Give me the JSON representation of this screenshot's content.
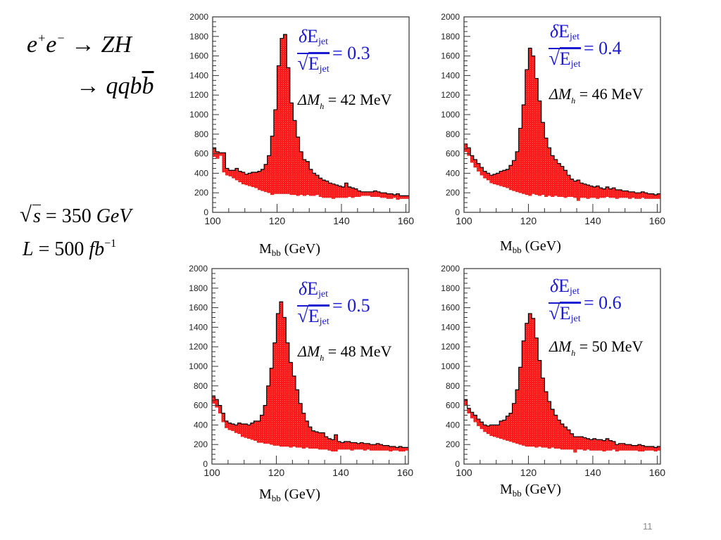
{
  "slide": {
    "page_number": "11",
    "process": {
      "line1_left": "e",
      "line1_sup1": "+",
      "line1_mid": "e",
      "line1_sup2": "−",
      "line1_arrow": "→",
      "line1_right": "ZH",
      "line2_arrow": "→",
      "line2_right": "qqb",
      "line2_bbar": "b"
    },
    "parameters": {
      "sqrt_s_symbol": "s",
      "sqrt_s_value": "= 350",
      "sqrt_s_unit": "GeV",
      "lumi_symbol": "L",
      "lumi_value": "= 500",
      "lumi_unit": "fb",
      "lumi_exp": "−1"
    },
    "colors": {
      "histogram_fill": "#ff1a1a",
      "histogram_edge": "#000000",
      "resolution_text": "#1a1ad0",
      "page_number": "#8a8a8a"
    }
  },
  "chart_data": [
    {
      "type": "bar",
      "subtype": "filled-band histogram",
      "title": "",
      "xlabel_main": "M",
      "xlabel_sub": "bb",
      "xlabel_unit": "(GeV)",
      "ylabel": "",
      "xlim": [
        100,
        161
      ],
      "ylim": [
        0,
        2000
      ],
      "xticks": [
        "100",
        "120",
        "140",
        "160"
      ],
      "yticks": [
        "0",
        "200",
        "400",
        "600",
        "800",
        "1000",
        "1200",
        "1400",
        "1600",
        "1800",
        "2000"
      ],
      "annotation_resolution": {
        "numerator": "E",
        "sub": "jet",
        "denominator": "E",
        "value": "= 0.3"
      },
      "annotation_mass": {
        "symbol": "ΔM",
        "sub": "h",
        "value": "= 42 MeV"
      },
      "bin_width": 1,
      "x_start": 100,
      "upper": [
        660,
        620,
        610,
        610,
        450,
        430,
        430,
        450,
        420,
        410,
        390,
        400,
        410,
        410,
        420,
        440,
        490,
        580,
        780,
        1050,
        1500,
        1780,
        1820,
        1480,
        1120,
        940,
        770,
        620,
        540,
        520,
        440,
        400,
        380,
        350,
        330,
        320,
        300,
        290,
        280,
        270,
        260,
        300,
        260,
        250,
        240,
        220,
        210,
        210,
        210,
        210,
        220,
        210,
        200,
        200,
        190,
        190,
        180,
        190,
        170,
        170,
        170
      ],
      "lower": [
        570,
        550,
        580,
        410,
        380,
        370,
        350,
        330,
        310,
        290,
        280,
        270,
        260,
        250,
        230,
        220,
        210,
        200,
        180,
        190,
        190,
        190,
        190,
        190,
        180,
        180,
        170,
        180,
        170,
        180,
        170,
        170,
        180,
        160,
        150,
        150,
        150,
        140,
        150,
        150,
        150,
        150,
        160,
        150,
        160,
        160,
        170,
        170,
        170,
        160,
        160,
        160,
        150,
        150,
        140,
        140,
        150,
        130,
        140,
        140,
        140
      ]
    },
    {
      "type": "bar",
      "subtype": "filled-band histogram",
      "title": "",
      "xlabel_main": "M",
      "xlabel_sub": "bb",
      "xlabel_unit": "(GeV)",
      "ylabel": "",
      "xlim": [
        100,
        161
      ],
      "ylim": [
        0,
        2000
      ],
      "xticks": [
        "100",
        "120",
        "140",
        "160"
      ],
      "yticks": [
        "0",
        "200",
        "400",
        "600",
        "800",
        "1000",
        "1200",
        "1400",
        "1600",
        "1800",
        "2000"
      ],
      "annotation_resolution": {
        "numerator": "E",
        "sub": "jet",
        "denominator": "E",
        "value": "= 0.4"
      },
      "annotation_mass": {
        "symbol": "ΔM",
        "sub": "h",
        "value": "= 46 MeV"
      },
      "bin_width": 1,
      "x_start": 100,
      "upper": [
        700,
        660,
        580,
        540,
        500,
        460,
        420,
        400,
        380,
        390,
        400,
        420,
        430,
        440,
        480,
        530,
        620,
        860,
        1100,
        1460,
        1680,
        1600,
        1370,
        1140,
        920,
        760,
        660,
        580,
        540,
        500,
        470,
        430,
        380,
        340,
        320,
        330,
        300,
        290,
        280,
        270,
        260,
        270,
        250,
        240,
        260,
        240,
        250,
        230,
        230,
        220,
        220,
        210,
        210,
        200,
        200,
        210,
        200,
        190,
        190,
        180,
        190
      ],
      "lower": [
        620,
        580,
        510,
        460,
        420,
        380,
        350,
        330,
        300,
        290,
        280,
        270,
        260,
        250,
        230,
        220,
        210,
        200,
        190,
        180,
        170,
        190,
        180,
        170,
        180,
        160,
        170,
        160,
        170,
        160,
        160,
        150,
        160,
        160,
        150,
        120,
        150,
        150,
        140,
        150,
        150,
        140,
        150,
        150,
        160,
        150,
        150,
        140,
        150,
        150,
        150,
        140,
        150,
        140,
        140,
        150,
        140,
        140,
        140,
        140,
        140
      ]
    },
    {
      "type": "bar",
      "subtype": "filled-band histogram",
      "title": "",
      "xlabel_main": "M",
      "xlabel_sub": "bb",
      "xlabel_unit": "(GeV)",
      "ylabel": "",
      "xlim": [
        100,
        161
      ],
      "ylim": [
        0,
        2000
      ],
      "xticks": [
        "100",
        "120",
        "140",
        "160"
      ],
      "yticks": [
        "0",
        "200",
        "400",
        "600",
        "800",
        "1000",
        "1200",
        "1400",
        "1600",
        "1800",
        "2000"
      ],
      "annotation_resolution": {
        "numerator": "E",
        "sub": "jet",
        "denominator": "E",
        "value": "= 0.5"
      },
      "annotation_mass": {
        "symbol": "ΔM",
        "sub": "h",
        "value": "= 48 MeV"
      },
      "bin_width": 1,
      "x_start": 100,
      "upper": [
        690,
        660,
        600,
        520,
        440,
        420,
        410,
        400,
        420,
        410,
        410,
        400,
        420,
        440,
        440,
        500,
        600,
        800,
        980,
        1240,
        1540,
        1660,
        1500,
        1240,
        1040,
        900,
        760,
        620,
        520,
        440,
        380,
        340,
        330,
        320,
        320,
        280,
        260,
        250,
        300,
        230,
        220,
        230,
        230,
        220,
        220,
        210,
        220,
        210,
        210,
        200,
        200,
        210,
        200,
        190,
        190,
        180,
        180,
        170,
        180,
        170,
        170
      ],
      "lower": [
        620,
        580,
        520,
        430,
        370,
        350,
        340,
        320,
        310,
        280,
        270,
        260,
        250,
        240,
        220,
        220,
        210,
        210,
        200,
        190,
        190,
        180,
        180,
        180,
        170,
        180,
        170,
        170,
        160,
        170,
        160,
        160,
        160,
        150,
        150,
        150,
        140,
        130,
        130,
        150,
        150,
        150,
        150,
        140,
        150,
        150,
        150,
        140,
        150,
        140,
        140,
        140,
        140,
        140,
        140,
        130,
        140,
        140,
        130,
        130,
        140
      ]
    },
    {
      "type": "bar",
      "subtype": "filled-band histogram",
      "title": "",
      "xlabel_main": "M",
      "xlabel_sub": "bb",
      "xlabel_unit": "(GeV)",
      "ylabel": "",
      "xlim": [
        100,
        161
      ],
      "ylim": [
        0,
        2000
      ],
      "xticks": [
        "100",
        "120",
        "140",
        "160"
      ],
      "yticks": [
        "0",
        "200",
        "400",
        "600",
        "800",
        "1000",
        "1200",
        "1400",
        "1600",
        "1800",
        "2000"
      ],
      "annotation_resolution": {
        "numerator": "E",
        "sub": "jet",
        "denominator": "E",
        "value": "= 0.6"
      },
      "annotation_mass": {
        "symbol": "ΔM",
        "sub": "h",
        "value": "= 50 MeV"
      },
      "bin_width": 1,
      "x_start": 100,
      "upper": [
        660,
        570,
        530,
        500,
        460,
        430,
        400,
        390,
        400,
        400,
        400,
        440,
        450,
        490,
        520,
        620,
        760,
        990,
        1260,
        1440,
        1540,
        1490,
        1290,
        1060,
        880,
        740,
        640,
        560,
        500,
        450,
        410,
        380,
        350,
        310,
        280,
        280,
        280,
        270,
        260,
        250,
        260,
        250,
        250,
        240,
        260,
        240,
        230,
        200,
        210,
        210,
        200,
        200,
        190,
        190,
        200,
        190,
        180,
        180,
        180,
        170,
        180
      ],
      "lower": [
        600,
        520,
        470,
        430,
        390,
        360,
        330,
        310,
        290,
        280,
        270,
        260,
        250,
        240,
        230,
        220,
        210,
        200,
        190,
        180,
        180,
        180,
        170,
        180,
        170,
        170,
        160,
        170,
        160,
        160,
        150,
        150,
        150,
        150,
        120,
        150,
        150,
        140,
        150,
        140,
        140,
        140,
        140,
        130,
        140,
        140,
        150,
        130,
        140,
        140,
        140,
        140,
        140,
        140,
        130,
        130,
        140,
        140,
        140,
        130,
        140
      ]
    }
  ]
}
